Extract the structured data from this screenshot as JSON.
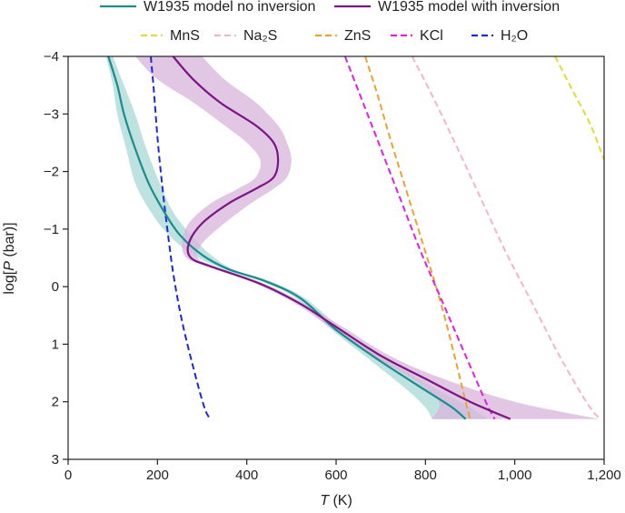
{
  "chart_data": {
    "type": "line",
    "xlabel": {
      "italic": "T",
      "rest": " (K)"
    },
    "ylabel": {
      "pre": "log[",
      "italic": "P",
      "post": " (bar)]"
    },
    "xlim": [
      0,
      1200
    ],
    "ylim": [
      3,
      -4
    ],
    "x_ticks": [
      0,
      200,
      400,
      600,
      800,
      1000,
      1200
    ],
    "x_tick_labels": [
      "0",
      "200",
      "400",
      "600",
      "800",
      "1,000",
      "1,200"
    ],
    "y_ticks": [
      -4,
      -3,
      -2,
      -1,
      0,
      1,
      2,
      3
    ],
    "y_tick_labels": [
      "−4",
      "−3",
      "−2",
      "−1",
      "0",
      "1",
      "2",
      "3"
    ],
    "legend_row1": [
      {
        "name": "W1935 model no inversion",
        "color": "#1a8c8c",
        "style": "solid"
      },
      {
        "name": "W1935 model with inversion",
        "color": "#7a1682",
        "style": "solid"
      }
    ],
    "legend_row2": [
      {
        "name": "MnS",
        "color": "#e6d83a",
        "style": "dashed"
      },
      {
        "name": "Na₂S",
        "color": "#f5b6c4",
        "style": "dashed"
      },
      {
        "name": "ZnS",
        "color": "#f0a030",
        "style": "dashed"
      },
      {
        "name": "KCl",
        "color": "#e020e0",
        "style": "dashed"
      },
      {
        "name": "H₂O",
        "color": "#1a2ad8",
        "style": "dashed"
      }
    ],
    "series": [
      {
        "name": "W1935 model no inversion",
        "color": "#1a8c8c",
        "band_color": "#a8d8d6",
        "points": [
          [
            90,
            -4
          ],
          [
            110,
            -3.5
          ],
          [
            125,
            -3.0
          ],
          [
            150,
            -2.4
          ],
          [
            180,
            -1.8
          ],
          [
            215,
            -1.3
          ],
          [
            250,
            -0.9
          ],
          [
            300,
            -0.55
          ],
          [
            360,
            -0.3
          ],
          [
            440,
            -0.1
          ],
          [
            520,
            0.2
          ],
          [
            600,
            0.75
          ],
          [
            700,
            1.3
          ],
          [
            800,
            1.8
          ],
          [
            860,
            2.1
          ],
          [
            890,
            2.3
          ]
        ],
        "band_low": [
          [
            85,
            -4
          ],
          [
            100,
            -3.5
          ],
          [
            110,
            -3.0
          ],
          [
            130,
            -2.4
          ],
          [
            150,
            -1.8
          ],
          [
            185,
            -1.3
          ],
          [
            225,
            -0.9
          ],
          [
            280,
            -0.55
          ],
          [
            350,
            -0.3
          ],
          [
            430,
            -0.1
          ],
          [
            510,
            0.2
          ],
          [
            590,
            0.75
          ],
          [
            680,
            1.3
          ],
          [
            760,
            1.8
          ],
          [
            800,
            2.1
          ],
          [
            815,
            2.3
          ]
        ],
        "band_high": [
          [
            100,
            -4
          ],
          [
            125,
            -3.5
          ],
          [
            150,
            -3.0
          ],
          [
            175,
            -2.4
          ],
          [
            205,
            -1.8
          ],
          [
            235,
            -1.3
          ],
          [
            275,
            -0.9
          ],
          [
            320,
            -0.55
          ],
          [
            370,
            -0.3
          ],
          [
            450,
            -0.1
          ],
          [
            530,
            0.2
          ],
          [
            615,
            0.75
          ],
          [
            720,
            1.3
          ],
          [
            830,
            1.8
          ],
          [
            900,
            2.1
          ],
          [
            940,
            2.3
          ]
        ]
      },
      {
        "name": "W1935 model with inversion",
        "color": "#7a1682",
        "band_color": "#d8b4dc",
        "points": [
          [
            235,
            -4
          ],
          [
            280,
            -3.6
          ],
          [
            340,
            -3.2
          ],
          [
            420,
            -2.8
          ],
          [
            460,
            -2.5
          ],
          [
            470,
            -2.2
          ],
          [
            460,
            -1.9
          ],
          [
            420,
            -1.7
          ],
          [
            360,
            -1.45
          ],
          [
            300,
            -1.1
          ],
          [
            270,
            -0.75
          ],
          [
            275,
            -0.5
          ],
          [
            320,
            -0.35
          ],
          [
            430,
            -0.05
          ],
          [
            520,
            0.3
          ],
          [
            600,
            0.7
          ],
          [
            700,
            1.2
          ],
          [
            800,
            1.6
          ],
          [
            900,
            2.0
          ],
          [
            990,
            2.3
          ]
        ],
        "band_low": [
          [
            150,
            -4
          ],
          [
            200,
            -3.6
          ],
          [
            280,
            -3.2
          ],
          [
            350,
            -2.8
          ],
          [
            400,
            -2.5
          ],
          [
            430,
            -2.2
          ],
          [
            420,
            -1.9
          ],
          [
            380,
            -1.7
          ],
          [
            320,
            -1.45
          ],
          [
            270,
            -1.1
          ],
          [
            255,
            -0.75
          ],
          [
            265,
            -0.5
          ],
          [
            310,
            -0.35
          ],
          [
            420,
            -0.05
          ],
          [
            510,
            0.3
          ],
          [
            585,
            0.7
          ],
          [
            680,
            1.2
          ],
          [
            770,
            1.6
          ],
          [
            830,
            2.0
          ],
          [
            815,
            2.3
          ]
        ],
        "band_high": [
          [
            300,
            -4
          ],
          [
            350,
            -3.6
          ],
          [
            420,
            -3.2
          ],
          [
            470,
            -2.8
          ],
          [
            490,
            -2.5
          ],
          [
            500,
            -2.2
          ],
          [
            490,
            -1.9
          ],
          [
            460,
            -1.7
          ],
          [
            410,
            -1.45
          ],
          [
            350,
            -1.1
          ],
          [
            300,
            -0.75
          ],
          [
            290,
            -0.5
          ],
          [
            330,
            -0.35
          ],
          [
            440,
            -0.05
          ],
          [
            530,
            0.3
          ],
          [
            615,
            0.7
          ],
          [
            720,
            1.2
          ],
          [
            840,
            1.6
          ],
          [
            1000,
            2.0
          ],
          [
            1190,
            2.3
          ]
        ]
      }
    ],
    "condensation_curves": [
      {
        "name": "MnS",
        "color": "#e6d83a",
        "points": [
          [
            1090,
            -4
          ],
          [
            1130,
            -3.4
          ],
          [
            1170,
            -2.8
          ],
          [
            1200,
            -2.2
          ]
        ]
      },
      {
        "name": "Na₂S",
        "color": "#f5b6c4",
        "points": [
          [
            770,
            -4
          ],
          [
            810,
            -3.4
          ],
          [
            860,
            -2.6
          ],
          [
            920,
            -1.6
          ],
          [
            980,
            -0.6
          ],
          [
            1040,
            0.3
          ],
          [
            1100,
            1.2
          ],
          [
            1160,
            2.0
          ],
          [
            1190,
            2.3
          ]
        ]
      },
      {
        "name": "ZnS",
        "color": "#f0a030",
        "points": [
          [
            665,
            -4
          ],
          [
            690,
            -3.4
          ],
          [
            720,
            -2.6
          ],
          [
            760,
            -1.6
          ],
          [
            800,
            -0.6
          ],
          [
            835,
            0.3
          ],
          [
            865,
            1.2
          ],
          [
            890,
            2.0
          ],
          [
            900,
            2.3
          ]
        ]
      },
      {
        "name": "KCl",
        "color": "#e020e0",
        "points": [
          [
            620,
            -4
          ],
          [
            650,
            -3.4
          ],
          [
            690,
            -2.6
          ],
          [
            740,
            -1.6
          ],
          [
            790,
            -0.6
          ],
          [
            840,
            0.3
          ],
          [
            890,
            1.2
          ],
          [
            935,
            2.0
          ],
          [
            955,
            2.3
          ]
        ]
      },
      {
        "name": "H₂O",
        "color": "#1a2ad8",
        "points": [
          [
            185,
            -4
          ],
          [
            192,
            -3.4
          ],
          [
            200,
            -2.6
          ],
          [
            210,
            -1.8
          ],
          [
            222,
            -1.0
          ],
          [
            236,
            -0.2
          ],
          [
            255,
            0.6
          ],
          [
            280,
            1.4
          ],
          [
            305,
            2.1
          ],
          [
            318,
            2.3
          ]
        ]
      }
    ]
  }
}
